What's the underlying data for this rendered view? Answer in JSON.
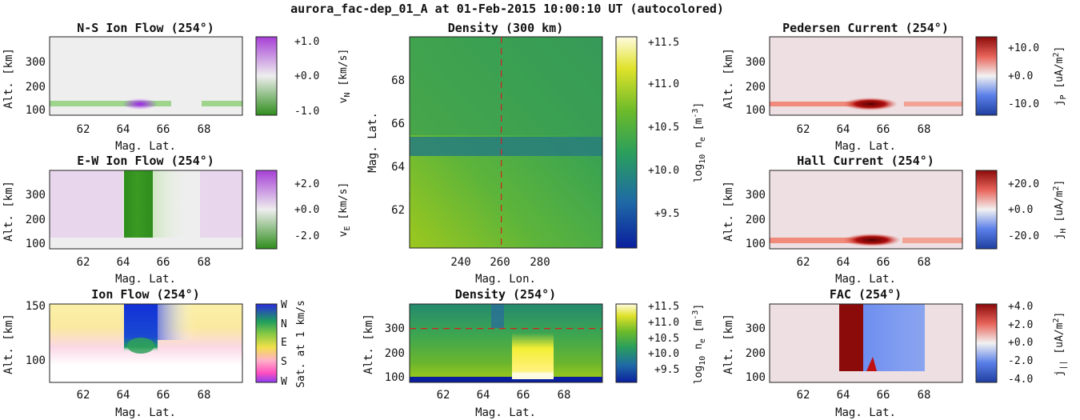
{
  "figure": {
    "title": "aurora_fac-dep_01_A at 01-Feb-2015 10:00:10 UT (autocolored)"
  },
  "chart_data": [
    {
      "id": "ns",
      "type": "heatmap",
      "title": "N-S Ion Flow (254°)",
      "xlabel": "Mag. Lat.",
      "ylabel": "Alt. [km]",
      "xlim": [
        60.3,
        69.9
      ],
      "ylim": [
        80,
        400
      ],
      "xticks": [
        "62",
        "64",
        "66",
        "68"
      ],
      "yticks": [
        "100",
        "200",
        "300"
      ],
      "colorbar": {
        "label": "v_N [km/s]",
        "ticks": [
          "+1.0",
          "+0.0",
          "-1.0"
        ],
        "range": [
          -1.5,
          1.5
        ],
        "colors": [
          "#2f8d1d",
          "#eeeeee",
          "#a63fd6"
        ]
      }
    },
    {
      "id": "ew",
      "type": "heatmap",
      "title": "E-W Ion Flow (254°)",
      "xlabel": "Mag. Lat.",
      "ylabel": "Alt. [km]",
      "xlim": [
        60.3,
        69.9
      ],
      "ylim": [
        80,
        400
      ],
      "xticks": [
        "62",
        "64",
        "66",
        "68"
      ],
      "yticks": [
        "100",
        "200",
        "300"
      ],
      "colorbar": {
        "label": "v_E [km/s]",
        "ticks": [
          "+2.0",
          "+0.0",
          "-2.0"
        ],
        "range": [
          -3.0,
          3.0
        ],
        "colors": [
          "#2f8d1d",
          "#eeeeee",
          "#a63fd6"
        ]
      }
    },
    {
      "id": "flow",
      "type": "heatmap",
      "title": "Ion Flow (254°)",
      "xlabel": "Mag. Lat.",
      "ylabel": "Alt. [km]",
      "xlim": [
        60.3,
        69.9
      ],
      "ylim": [
        80,
        150
      ],
      "xticks": [
        "62",
        "64",
        "66",
        "68"
      ],
      "yticks": [
        "100",
        "150"
      ],
      "colorbar": {
        "label": "Sat. at 1 km/s",
        "ticks": [
          "W",
          "N",
          "E",
          "S",
          "W"
        ],
        "colors": [
          "#2b2bdd",
          "#1f9e5e",
          "#f1e04a",
          "#ff4fbf",
          "#8a3cf0",
          "#2b2bdd"
        ]
      }
    },
    {
      "id": "dens300",
      "type": "heatmap",
      "title": "Density (300 km)",
      "xlabel": "Mag. Lon.",
      "ylabel": "Mag. Lat.",
      "xlim": [
        225,
        286
      ],
      "ylim": [
        60.3,
        69.9
      ],
      "xticks": [
        "240",
        "260",
        "280"
      ],
      "yticks": [
        "62",
        "64",
        "66",
        "68"
      ],
      "marker_lon": 254,
      "colorbar": {
        "label": "log10 ne [m^-3]",
        "ticks": [
          "+11.5",
          "+11.0",
          "+10.5",
          "+10.0",
          "+9.5"
        ],
        "range": [
          9.2,
          11.6
        ]
      }
    },
    {
      "id": "dens254",
      "type": "heatmap",
      "title": "Density (254°)",
      "xlabel": "Mag. Lat.",
      "ylabel": "Alt. [km]",
      "xlim": [
        60.3,
        69.9
      ],
      "ylim": [
        80,
        400
      ],
      "xticks": [
        "62",
        "64",
        "66",
        "68"
      ],
      "yticks": [
        "100",
        "200",
        "300"
      ],
      "marker_alt": 300,
      "colorbar": {
        "label": "log10 ne [m^-3]",
        "ticks": [
          "+11.5",
          "+11.0",
          "+10.5",
          "+10.0",
          "+9.5"
        ],
        "range": [
          9.2,
          11.6
        ]
      }
    },
    {
      "id": "ped",
      "type": "heatmap",
      "title": "Pedersen Current (254°)",
      "xlabel": "Mag. Lat.",
      "ylabel": "Alt. [km]",
      "xlim": [
        60.3,
        69.9
      ],
      "ylim": [
        80,
        400
      ],
      "xticks": [
        "62",
        "64",
        "66",
        "68"
      ],
      "yticks": [
        "100",
        "200",
        "300"
      ],
      "colorbar": {
        "label": "jP [uA/m^2]",
        "ticks": [
          "+10.0",
          "+0.0",
          "-10.0"
        ],
        "range": [
          -15,
          15
        ]
      }
    },
    {
      "id": "hall",
      "type": "heatmap",
      "title": "Hall Current (254°)",
      "xlabel": "Mag. Lat.",
      "ylabel": "Alt. [km]",
      "xlim": [
        60.3,
        69.9
      ],
      "ylim": [
        80,
        400
      ],
      "xticks": [
        "62",
        "64",
        "66",
        "68"
      ],
      "yticks": [
        "100",
        "200",
        "300"
      ],
      "colorbar": {
        "label": "jH [uA/m^2]",
        "ticks": [
          "+20.0",
          "+0.0",
          "-20.0"
        ],
        "range": [
          -30,
          30
        ]
      }
    },
    {
      "id": "fac",
      "type": "heatmap",
      "title": "FAC (254°)",
      "xlabel": "Mag. Lat.",
      "ylabel": "Alt. [km]",
      "xlim": [
        60.3,
        69.9
      ],
      "ylim": [
        80,
        400
      ],
      "xticks": [
        "62",
        "64",
        "66",
        "68"
      ],
      "yticks": [
        "100",
        "200",
        "300"
      ],
      "colorbar": {
        "label": "j|| [uA/m^2]",
        "ticks": [
          "+4.0",
          "+2.0",
          "+0.0",
          "-2.0",
          "-4.0"
        ],
        "range": [
          -4.2,
          4.2
        ]
      }
    }
  ]
}
